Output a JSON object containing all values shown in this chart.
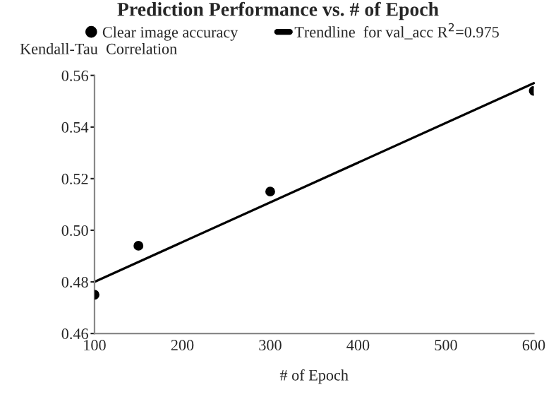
{
  "chart_data": {
    "type": "scatter",
    "title": "Prediction Performance vs. # of Epoch",
    "xlabel": "# of Epoch",
    "ylabel": "Kendall-Tau  Correlation",
    "series": [
      {
        "name": "Clear image accuracy",
        "color": "#000000",
        "x": [
          100,
          150,
          300,
          600
        ],
        "values": [
          0.475,
          0.494,
          0.515,
          0.554
        ],
        "marker": "circle"
      },
      {
        "name": "Trendline  for val_acc R$^{2}$=0.975",
        "type": "line",
        "color": "#000000",
        "x": [
          100,
          600
        ],
        "values": [
          0.48,
          0.557
        ],
        "marker": "none",
        "line_style": "solid"
      }
    ],
    "xlim": [
      100,
      600
    ],
    "xticks": [
      100,
      200,
      300,
      400,
      500,
      600
    ],
    "ylim": [
      0.46,
      0.56
    ],
    "yticks": [
      {
        "value": 0.46,
        "label": "0.46"
      },
      {
        "value": 0.48,
        "label": "0.48"
      },
      {
        "value": 0.5,
        "label": "0.50"
      },
      {
        "value": 0.52,
        "label": "0.52"
      },
      {
        "value": 0.54,
        "label": "0.54"
      },
      {
        "value": 0.56,
        "label": "0.56"
      }
    ],
    "grid": false,
    "legend": "top"
  }
}
